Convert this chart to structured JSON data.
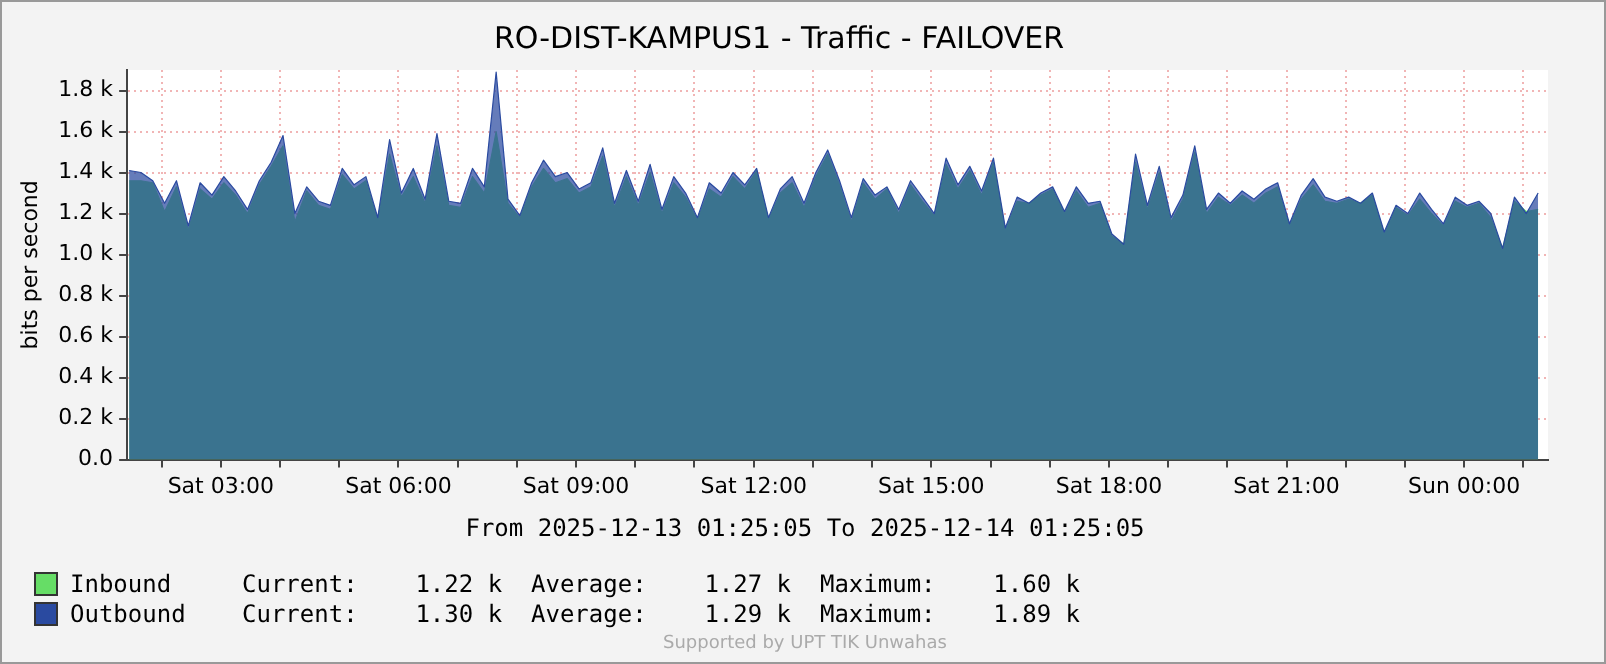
{
  "chart_data": {
    "type": "area",
    "title": "RO-DIST-KAMPUS1 - Traffic - FAILOVER",
    "ylabel": "bits per second",
    "x": [
      "2025-12-13T01:27",
      "2025-12-13T01:39",
      "2025-12-13T01:51",
      "2025-12-13T02:03",
      "2025-12-13T02:15",
      "2025-12-13T02:27",
      "2025-12-13T02:39",
      "2025-12-13T02:51",
      "2025-12-13T03:03",
      "2025-12-13T03:15",
      "2025-12-13T03:27",
      "2025-12-13T03:39",
      "2025-12-13T03:51",
      "2025-12-13T04:03",
      "2025-12-13T04:15",
      "2025-12-13T04:27",
      "2025-12-13T04:39",
      "2025-12-13T04:51",
      "2025-12-13T05:03",
      "2025-12-13T05:15",
      "2025-12-13T05:27",
      "2025-12-13T05:39",
      "2025-12-13T05:51",
      "2025-12-13T06:03",
      "2025-12-13T06:15",
      "2025-12-13T06:27",
      "2025-12-13T06:39",
      "2025-12-13T06:51",
      "2025-12-13T07:03",
      "2025-12-13T07:15",
      "2025-12-13T07:27",
      "2025-12-13T07:39",
      "2025-12-13T07:51",
      "2025-12-13T08:03",
      "2025-12-13T08:15",
      "2025-12-13T08:27",
      "2025-12-13T08:39",
      "2025-12-13T08:51",
      "2025-12-13T09:03",
      "2025-12-13T09:15",
      "2025-12-13T09:27",
      "2025-12-13T09:39",
      "2025-12-13T09:51",
      "2025-12-13T10:03",
      "2025-12-13T10:15",
      "2025-12-13T10:27",
      "2025-12-13T10:39",
      "2025-12-13T10:51",
      "2025-12-13T11:03",
      "2025-12-13T11:15",
      "2025-12-13T11:27",
      "2025-12-13T11:39",
      "2025-12-13T11:51",
      "2025-12-13T12:03",
      "2025-12-13T12:15",
      "2025-12-13T12:27",
      "2025-12-13T12:39",
      "2025-12-13T12:51",
      "2025-12-13T13:03",
      "2025-12-13T13:15",
      "2025-12-13T13:27",
      "2025-12-13T13:39",
      "2025-12-13T13:51",
      "2025-12-13T14:03",
      "2025-12-13T14:15",
      "2025-12-13T14:27",
      "2025-12-13T14:39",
      "2025-12-13T14:51",
      "2025-12-13T15:03",
      "2025-12-13T15:15",
      "2025-12-13T15:27",
      "2025-12-13T15:39",
      "2025-12-13T15:51",
      "2025-12-13T16:03",
      "2025-12-13T16:15",
      "2025-12-13T16:27",
      "2025-12-13T16:39",
      "2025-12-13T16:51",
      "2025-12-13T17:03",
      "2025-12-13T17:15",
      "2025-12-13T17:27",
      "2025-12-13T17:39",
      "2025-12-13T17:51",
      "2025-12-13T18:03",
      "2025-12-13T18:15",
      "2025-12-13T18:27",
      "2025-12-13T18:39",
      "2025-12-13T18:51",
      "2025-12-13T19:03",
      "2025-12-13T19:15",
      "2025-12-13T19:27",
      "2025-12-13T19:39",
      "2025-12-13T19:51",
      "2025-12-13T20:03",
      "2025-12-13T20:15",
      "2025-12-13T20:27",
      "2025-12-13T20:39",
      "2025-12-13T20:51",
      "2025-12-13T21:03",
      "2025-12-13T21:15",
      "2025-12-13T21:27",
      "2025-12-13T21:39",
      "2025-12-13T21:51",
      "2025-12-13T22:03",
      "2025-12-13T22:15",
      "2025-12-13T22:27",
      "2025-12-13T22:39",
      "2025-12-13T22:51",
      "2025-12-13T23:03",
      "2025-12-13T23:15",
      "2025-12-13T23:27",
      "2025-12-13T23:39",
      "2025-12-13T23:51",
      "2025-12-14T00:03",
      "2025-12-14T00:15",
      "2025-12-14T00:27",
      "2025-12-14T00:39",
      "2025-12-14T00:51",
      "2025-12-14T01:03",
      "2025-12-14T01:15"
    ],
    "series": [
      {
        "name": "Inbound",
        "color": "#66dd66",
        "values": [
          1360,
          1360,
          1350,
          1210,
          1330,
          1120,
          1320,
          1270,
          1350,
          1290,
          1200,
          1340,
          1430,
          1530,
          1160,
          1310,
          1240,
          1220,
          1390,
          1320,
          1360,
          1170,
          1490,
          1280,
          1380,
          1250,
          1530,
          1240,
          1230,
          1380,
          1300,
          1600,
          1250,
          1180,
          1330,
          1420,
          1350,
          1370,
          1300,
          1330,
          1480,
          1230,
          1380,
          1240,
          1400,
          1200,
          1350,
          1280,
          1170,
          1320,
          1280,
          1380,
          1320,
          1410,
          1170,
          1300,
          1350,
          1230,
          1380,
          1490,
          1340,
          1160,
          1350,
          1270,
          1320,
          1200,
          1340,
          1260,
          1190,
          1440,
          1320,
          1410,
          1290,
          1450,
          1120,
          1260,
          1250,
          1290,
          1320,
          1200,
          1310,
          1230,
          1250,
          1090,
          1050,
          1450,
          1220,
          1400,
          1160,
          1270,
          1500,
          1200,
          1280,
          1240,
          1290,
          1250,
          1300,
          1330,
          1140,
          1270,
          1340,
          1260,
          1250,
          1270,
          1250,
          1290,
          1100,
          1230,
          1190,
          1270,
          1200,
          1140,
          1260,
          1230,
          1250,
          1180,
          1030,
          1260,
          1210,
          1220
        ]
      },
      {
        "name": "Outbound",
        "color": "#2a4aa0",
        "values": [
          1410,
          1400,
          1360,
          1250,
          1360,
          1140,
          1350,
          1290,
          1380,
          1310,
          1220,
          1360,
          1450,
          1580,
          1200,
          1330,
          1260,
          1240,
          1420,
          1340,
          1380,
          1180,
          1560,
          1300,
          1420,
          1270,
          1590,
          1260,
          1250,
          1420,
          1330,
          1890,
          1270,
          1190,
          1350,
          1460,
          1380,
          1400,
          1320,
          1350,
          1520,
          1250,
          1410,
          1260,
          1440,
          1220,
          1380,
          1300,
          1180,
          1350,
          1300,
          1400,
          1340,
          1420,
          1180,
          1320,
          1380,
          1250,
          1400,
          1510,
          1360,
          1180,
          1370,
          1290,
          1330,
          1220,
          1360,
          1280,
          1200,
          1470,
          1340,
          1430,
          1310,
          1470,
          1130,
          1280,
          1250,
          1300,
          1330,
          1210,
          1330,
          1250,
          1260,
          1100,
          1050,
          1490,
          1240,
          1430,
          1180,
          1290,
          1530,
          1220,
          1300,
          1250,
          1310,
          1270,
          1320,
          1350,
          1150,
          1290,
          1370,
          1280,
          1260,
          1280,
          1250,
          1300,
          1110,
          1240,
          1200,
          1300,
          1220,
          1150,
          1280,
          1240,
          1260,
          1200,
          1030,
          1280,
          1200,
          1300
        ]
      }
    ],
    "xlim": [
      "2025-12-13T01:25",
      "2025-12-14T01:25"
    ],
    "xticks": [
      {
        "value": "2025-12-13T02:00",
        "label": null
      },
      {
        "value": "2025-12-13T03:00",
        "label": "Sat 03:00"
      },
      {
        "value": "2025-12-13T04:00",
        "label": null
      },
      {
        "value": "2025-12-13T05:00",
        "label": null
      },
      {
        "value": "2025-12-13T06:00",
        "label": "Sat 06:00"
      },
      {
        "value": "2025-12-13T07:00",
        "label": null
      },
      {
        "value": "2025-12-13T08:00",
        "label": null
      },
      {
        "value": "2025-12-13T09:00",
        "label": "Sat 09:00"
      },
      {
        "value": "2025-12-13T10:00",
        "label": null
      },
      {
        "value": "2025-12-13T11:00",
        "label": null
      },
      {
        "value": "2025-12-13T12:00",
        "label": "Sat 12:00"
      },
      {
        "value": "2025-12-13T13:00",
        "label": null
      },
      {
        "value": "2025-12-13T14:00",
        "label": null
      },
      {
        "value": "2025-12-13T15:00",
        "label": "Sat 15:00"
      },
      {
        "value": "2025-12-13T16:00",
        "label": null
      },
      {
        "value": "2025-12-13T17:00",
        "label": null
      },
      {
        "value": "2025-12-13T18:00",
        "label": "Sat 18:00"
      },
      {
        "value": "2025-12-13T19:00",
        "label": null
      },
      {
        "value": "2025-12-13T20:00",
        "label": null
      },
      {
        "value": "2025-12-13T21:00",
        "label": "Sat 21:00"
      },
      {
        "value": "2025-12-13T22:00",
        "label": null
      },
      {
        "value": "2025-12-13T23:00",
        "label": null
      },
      {
        "value": "2025-12-14T00:00",
        "label": "Sun 00:00"
      },
      {
        "value": "2025-12-14T01:00",
        "label": null
      }
    ],
    "ylim": [
      0,
      1900
    ],
    "yticks": [
      {
        "value": 0,
        "label": "0.0"
      },
      {
        "value": 200,
        "label": "0.2 k"
      },
      {
        "value": 400,
        "label": "0.4 k"
      },
      {
        "value": 600,
        "label": "0.6 k"
      },
      {
        "value": 800,
        "label": "0.8 k"
      },
      {
        "value": 1000,
        "label": "1.0 k"
      },
      {
        "value": 1200,
        "label": "1.2 k"
      },
      {
        "value": 1400,
        "label": "1.4 k"
      },
      {
        "value": 1600,
        "label": "1.6 k"
      },
      {
        "value": 1800,
        "label": "1.8 k"
      }
    ],
    "grid": true,
    "legend": "bottom",
    "annotations": [
      "From 2025-12-13 01:25:05 To 2025-12-14 01:25:05",
      "Current:    1.22 k  Average:    1.27 k  Maximum:    1.60 k",
      "Current:    1.30 k  Average:    1.29 k  Maximum:    1.89 k",
      "Supported by UPT TIK Unwahas"
    ]
  }
}
